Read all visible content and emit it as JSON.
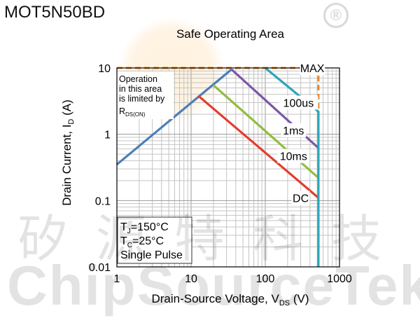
{
  "header": {
    "part_number": "MOT5N50BD"
  },
  "watermark": {
    "logo_text": "®",
    "cn_text": "矽源特科技",
    "en_text": "ChipSourceTek"
  },
  "chart_data": {
    "type": "line",
    "title": "Safe Operating Area",
    "xlabel": "Drain-Source Voltage, V",
    "xlabel_sub": "DS",
    "xlabel_unit": " (V)",
    "ylabel": "Drain Current, I",
    "ylabel_sub": "D",
    "ylabel_unit": " (A)",
    "x_scale": "log",
    "y_scale": "log",
    "xlim": [
      1,
      1000
    ],
    "ylim": [
      0.01,
      10
    ],
    "x_ticks": [
      {
        "v": 1,
        "label": "1"
      },
      {
        "v": 10,
        "label": "10"
      },
      {
        "v": 100,
        "label": "100"
      },
      {
        "v": 1000,
        "label": "1000"
      }
    ],
    "y_ticks": [
      {
        "v": 0.01,
        "label": "0.01"
      },
      {
        "v": 0.1,
        "label": "0.1"
      },
      {
        "v": 1,
        "label": "1"
      },
      {
        "v": 10,
        "label": "10"
      }
    ],
    "grid": true,
    "series": [
      {
        "name": "MAX",
        "color": "#E38A2E",
        "dashed": true,
        "points": [
          [
            1,
            10
          ],
          [
            520,
            10
          ],
          [
            520,
            2.2
          ]
        ]
      },
      {
        "name": "RDS(ON)",
        "color": "#4A7EB8",
        "dashed": false,
        "points": [
          [
            1,
            0.35
          ],
          [
            35,
            9.5
          ]
        ]
      },
      {
        "name": "100us",
        "color": "#7A58A6",
        "dashed": false,
        "points": [
          [
            35,
            9.5
          ],
          [
            520,
            0.62
          ]
        ]
      },
      {
        "name": "1ms",
        "color": "#93BC3E",
        "dashed": false,
        "points": [
          [
            20,
            5.5
          ],
          [
            520,
            0.22
          ]
        ]
      },
      {
        "name": "10ms",
        "color": "#E33C2C",
        "dashed": false,
        "points": [
          [
            12.5,
            3.8
          ],
          [
            520,
            0.11
          ]
        ]
      },
      {
        "name": "DC",
        "color": "#2CA4B8",
        "dashed": false,
        "points": [
          [
            100,
            10
          ],
          [
            520,
            2.2
          ],
          [
            520,
            0.01
          ]
        ]
      }
    ],
    "labels": [
      {
        "text": "MAX",
        "x": 430,
        "y": 10
      },
      {
        "text": "100us",
        "x": 280,
        "y": 3.0
      },
      {
        "text": "1ms",
        "x": 240,
        "y": 1.15
      },
      {
        "text": "10ms",
        "x": 240,
        "y": 0.47
      },
      {
        "text": "DC",
        "x": 300,
        "y": 0.11
      }
    ],
    "note_lines": [
      "Operation",
      "in this area",
      "is limited by"
    ],
    "note_rds": {
      "main": "R",
      "sub": "DS(ON)"
    },
    "conditions": [
      {
        "main": "T",
        "sub": "J",
        "rest": "=150°C"
      },
      {
        "main": "T",
        "sub": "C",
        "rest": "=25°C"
      },
      {
        "main": "Single Pulse",
        "sub": "",
        "rest": ""
      }
    ]
  }
}
